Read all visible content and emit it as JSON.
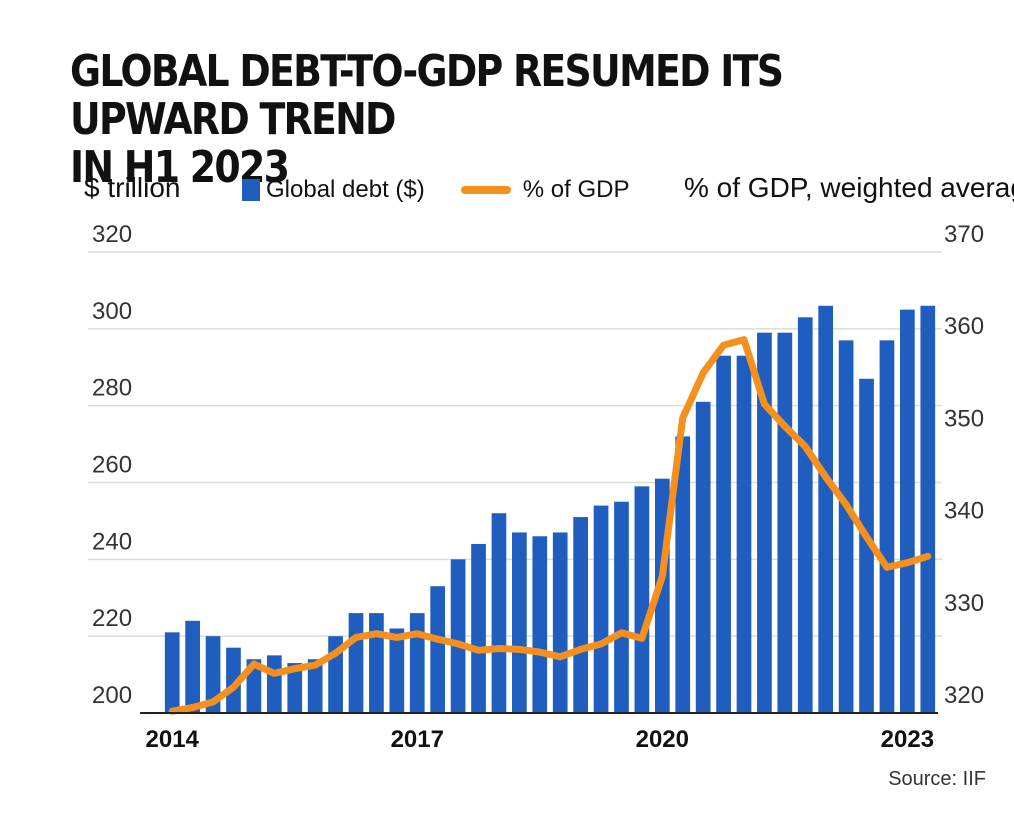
{
  "title_lines": [
    "GLOBAL DEBT-TO-GDP RESUMED ITS UPWARD TREND",
    "IN H1 2023"
  ],
  "source": "Source: IIF",
  "chart_data": {
    "type": "bar+line",
    "left_axis_title": "$ trillion",
    "right_axis_title": "% of GDP, weighted average",
    "left_ylim": [
      200,
      320
    ],
    "left_ticks": [
      200,
      220,
      240,
      260,
      280,
      300,
      320
    ],
    "right_ylim": [
      320,
      370
    ],
    "right_ticks": [
      {
        "value": 320,
        "label": "320"
      },
      {
        "value": 330,
        "label": "330"
      },
      {
        "value": 340,
        "label": "340"
      },
      {
        "value": 350,
        "label": "350"
      },
      {
        "value": 360,
        "label": "360"
      },
      {
        "value": 370,
        "label": "370"
      }
    ],
    "bar_series_name": "Global debt ($)",
    "line_series_name": "% of GDP",
    "x_labels": [
      {
        "label": "2014",
        "index": 0
      },
      {
        "label": "2017",
        "index": 12
      },
      {
        "label": "2020",
        "index": 24
      },
      {
        "label": "2023",
        "index": 36
      }
    ],
    "bar_values": [
      221,
      224,
      220,
      217,
      214,
      215,
      213,
      214,
      220,
      226,
      226,
      222,
      226,
      233,
      240,
      244,
      252,
      247,
      246,
      247,
      251,
      254,
      255,
      259,
      261,
      272,
      281,
      293,
      293,
      299,
      299,
      303,
      306,
      297,
      287,
      297,
      305,
      306
    ],
    "line_values": [
      320.2,
      320.6,
      321.2,
      322.8,
      325.3,
      324.3,
      324.8,
      325.2,
      326.5,
      328.2,
      328.6,
      328.2,
      328.6,
      328.0,
      327.5,
      326.8,
      327.0,
      326.9,
      326.6,
      326.1,
      326.9,
      327.5,
      328.7,
      328.1,
      334.8,
      352.0,
      356.9,
      359.9,
      360.5,
      353.5,
      351.1,
      348.9,
      345.6,
      342.6,
      339.1,
      335.8,
      336.3,
      337.0
    ],
    "colors": {
      "bars": "#1f5dbf",
      "line": "#f5901e",
      "grid": "#dcdcdc",
      "baseline": "#222222"
    }
  }
}
